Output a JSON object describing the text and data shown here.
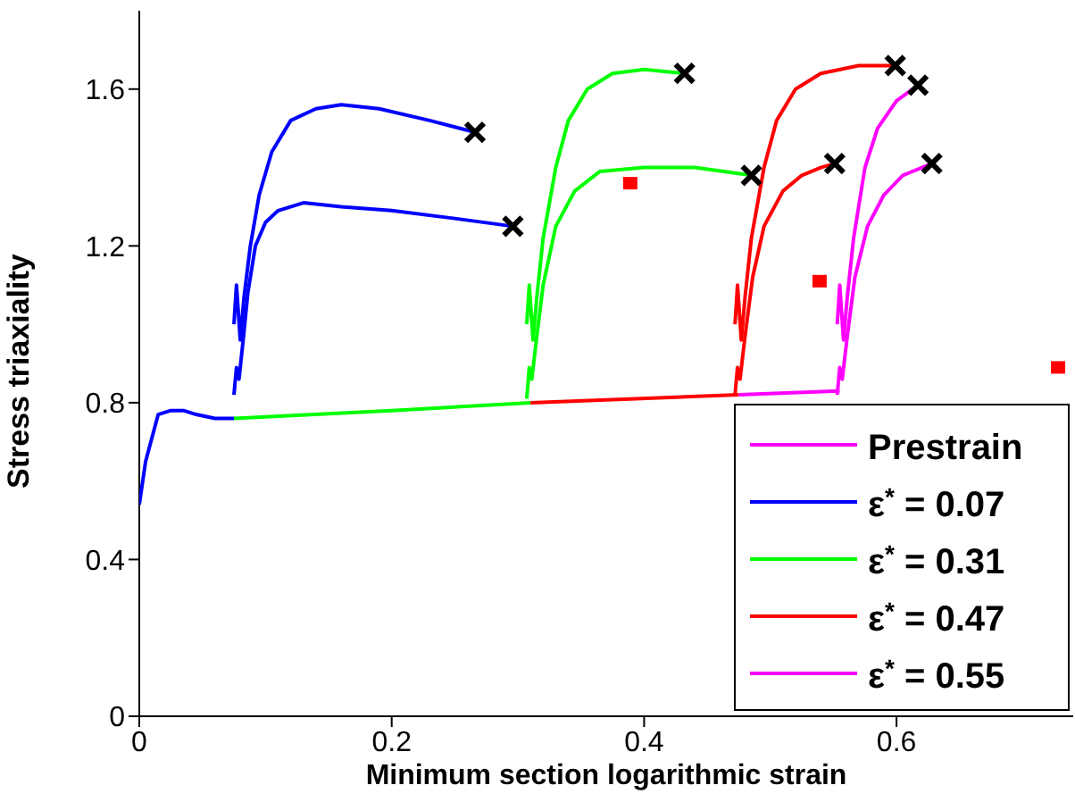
{
  "chart_data": {
    "type": "line",
    "xlabel": "Minimum section logarithmic strain",
    "ylabel": "Stress triaxiality",
    "xlim": [
      0,
      0.74
    ],
    "xticks": [
      0,
      0.2,
      0.4,
      0.6
    ],
    "ylim": [
      0,
      1.8
    ],
    "yticks": [
      0,
      0.4,
      0.8,
      1.2,
      1.6
    ],
    "grid": false,
    "legend": "bottom right",
    "series": [
      {
        "name": "Prestrain",
        "color": "#ff00ff",
        "x": [
          0.475,
          0.555
        ],
        "values": [
          0.82,
          0.83
        ]
      },
      {
        "name": "ε$^{*}$ = 0.07",
        "color": "#0000ff",
        "x": [
          0,
          0.005,
          0.015,
          0.025,
          0.035,
          0.045,
          0.06,
          0.075
        ],
        "values": [
          0.54,
          0.65,
          0.77,
          0.78,
          0.78,
          0.77,
          0.76,
          0.76
        ]
      },
      {
        "color": "#0000ff",
        "x": [
          0.075,
          0.077,
          0.079,
          0.082,
          0.086,
          0.092,
          0.1,
          0.11,
          0.13,
          0.16,
          0.2,
          0.25,
          0.296
        ],
        "values": [
          0.82,
          0.89,
          0.86,
          0.95,
          1.08,
          1.2,
          1.26,
          1.29,
          1.31,
          1.3,
          1.29,
          1.27,
          1.25
        ]
      },
      {
        "color": "#0000ff",
        "x": [
          0.075,
          0.077,
          0.08,
          0.083,
          0.088,
          0.095,
          0.105,
          0.12,
          0.14,
          0.16,
          0.19,
          0.23,
          0.266
        ],
        "values": [
          1.0,
          1.1,
          0.96,
          1.07,
          1.2,
          1.33,
          1.44,
          1.52,
          1.55,
          1.56,
          1.55,
          1.52,
          1.49
        ]
      },
      {
        "name": "ε$^{*}$ = 0.31",
        "color": "#00ff00",
        "x": [
          0.075,
          0.2,
          0.31
        ],
        "values": [
          0.76,
          0.78,
          0.8
        ]
      },
      {
        "color": "#00ff00",
        "x": [
          0.307,
          0.309,
          0.312,
          0.315,
          0.32,
          0.33,
          0.34,
          0.355,
          0.375,
          0.4,
          0.432
        ],
        "values": [
          1.0,
          1.1,
          0.96,
          1.07,
          1.22,
          1.4,
          1.52,
          1.6,
          1.64,
          1.65,
          1.64
        ]
      },
      {
        "color": "#00ff00",
        "x": [
          0.307,
          0.309,
          0.311,
          0.315,
          0.32,
          0.33,
          0.345,
          0.365,
          0.4,
          0.44,
          0.485
        ],
        "values": [
          0.81,
          0.89,
          0.86,
          0.97,
          1.1,
          1.25,
          1.34,
          1.39,
          1.4,
          1.4,
          1.38
        ]
      },
      {
        "name": "ε$^{*}$ = 0.47",
        "color": "#ff0000",
        "x": [
          0.31,
          0.475
        ],
        "values": [
          0.8,
          0.82
        ]
      },
      {
        "color": "#ff0000",
        "x": [
          0.472,
          0.474,
          0.477,
          0.48,
          0.485,
          0.495,
          0.505,
          0.52,
          0.54,
          0.57,
          0.599
        ],
        "values": [
          1.0,
          1.1,
          0.96,
          1.07,
          1.22,
          1.4,
          1.52,
          1.6,
          1.64,
          1.66,
          1.66
        ]
      },
      {
        "color": "#ff0000",
        "x": [
          0.472,
          0.474,
          0.476,
          0.48,
          0.486,
          0.495,
          0.51,
          0.525,
          0.54,
          0.551
        ],
        "values": [
          0.82,
          0.89,
          0.86,
          0.97,
          1.12,
          1.25,
          1.34,
          1.38,
          1.4,
          1.41
        ]
      },
      {
        "name": "ε$^{*}$ = 0.55",
        "color": "#ff00ff",
        "x": [
          0.553,
          0.555,
          0.557,
          0.561,
          0.567,
          0.577,
          0.59,
          0.605,
          0.628
        ],
        "values": [
          0.82,
          0.89,
          0.86,
          0.97,
          1.12,
          1.25,
          1.33,
          1.38,
          1.41
        ]
      },
      {
        "color": "#ff00ff",
        "x": [
          0.553,
          0.555,
          0.558,
          0.561,
          0.566,
          0.575,
          0.585,
          0.6,
          0.617
        ],
        "values": [
          1.0,
          1.1,
          0.96,
          1.07,
          1.22,
          1.4,
          1.5,
          1.57,
          1.61
        ]
      },
      {
        "type": "scatter",
        "marker": "cross",
        "color": "#000000",
        "x": [
          0.266,
          0.296,
          0.432,
          0.485,
          0.599,
          0.551,
          0.617,
          0.628
        ],
        "values": [
          1.49,
          1.25,
          1.64,
          1.38,
          1.66,
          1.41,
          1.61,
          1.41
        ]
      },
      {
        "type": "scatter",
        "marker": "square",
        "color": "#ff0000",
        "x": [
          0.389,
          0.539,
          0.728
        ],
        "values": [
          1.36,
          1.11,
          0.89
        ]
      }
    ]
  }
}
